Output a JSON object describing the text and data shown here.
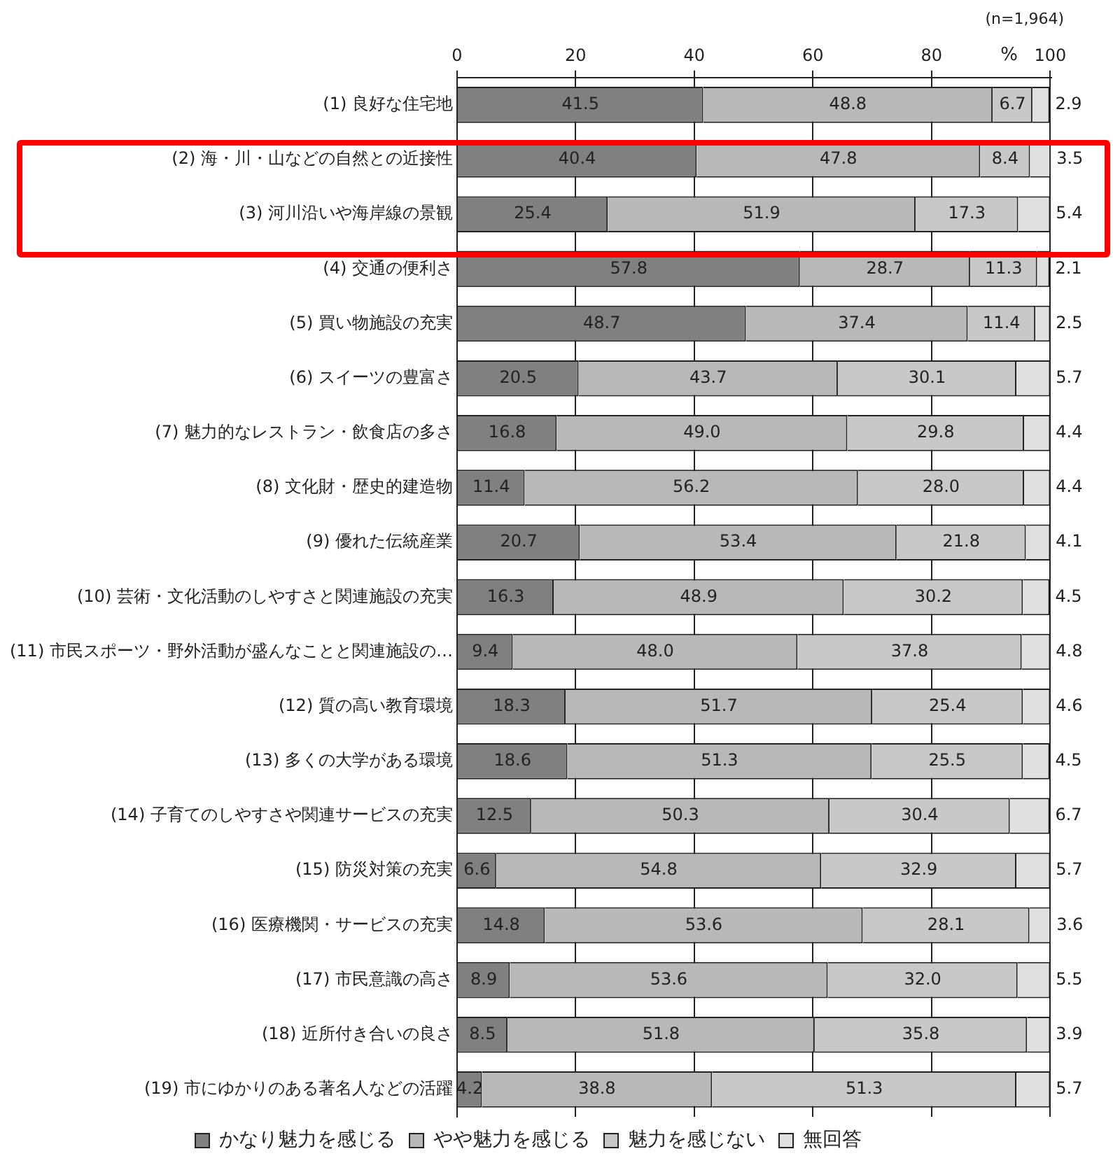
{
  "chart_data": {
    "type": "bar",
    "orientation": "horizontal",
    "stacked": true,
    "grid": "x",
    "legend": "bottom",
    "xlabel": "%",
    "annotations": [
      "(n=1,964)"
    ],
    "xlim": [
      0,
      100.2
    ],
    "xticks": [
      0,
      20,
      40,
      60,
      80,
      100
    ],
    "categories": [
      "(1) 良好な住宅地",
      "(2) 海・川・山などの自然との近接性",
      "(3) 河川沿いや海岸線の景観",
      "(4) 交通の便利さ",
      "(5) 買い物施設の充実",
      "(6) スイーツの豊富さ",
      "(7) 魅力的なレストラン・飲食店の多さ",
      "(8) 文化財・歴史的建造物",
      "(9) 優れた伝統産業",
      "(10) 芸術・文化活動のしやすさと関連施設の充実",
      "(11) 市民スポーツ・野外活動が盛んなことと関連施設の…",
      "(12) 質の高い教育環境",
      "(13) 多くの大学がある環境",
      "(14) 子育てのしやすさや関連サービスの充実",
      "(15) 防災対策の充実",
      "(16) 医療機関・サービスの充実",
      "(17) 市民意識の高さ",
      "(18) 近所付き合いの良さ",
      "(19) 市にゆかりのある著名人などの活躍"
    ],
    "series": [
      {
        "name": "かなり魅力を感じる",
        "color": "#808080",
        "values": [
          41.5,
          40.4,
          25.4,
          57.8,
          48.7,
          20.5,
          16.8,
          11.4,
          20.7,
          16.3,
          9.4,
          18.3,
          18.6,
          12.5,
          6.6,
          14.8,
          8.9,
          8.5,
          4.2
        ],
        "value_labels": [
          "41.5",
          "40.4",
          "25.4",
          "57.8",
          "48.7",
          "20.5",
          "16.8",
          "11.4",
          "20.7",
          "16.3",
          "9.4",
          "18.3",
          "18.6",
          "12.5",
          "6.6",
          "14.8",
          "8.9",
          "8.5",
          "4.2"
        ]
      },
      {
        "name": "やや魅力を感じる",
        "color": "#b8b8b8",
        "values": [
          48.8,
          47.8,
          51.9,
          28.7,
          37.4,
          43.7,
          49.0,
          56.2,
          53.4,
          48.9,
          48.0,
          51.7,
          51.3,
          50.3,
          54.8,
          53.6,
          53.6,
          51.8,
          38.8
        ],
        "value_labels": [
          "48.8",
          "47.8",
          "51.9",
          "28.7",
          "37.4",
          "43.7",
          "49.0",
          "56.2",
          "53.4",
          "48.9",
          "48.0",
          "51.7",
          "51.3",
          "50.3",
          "54.8",
          "53.6",
          "53.6",
          "51.8",
          "38.8"
        ]
      },
      {
        "name": "魅力を感じない",
        "color": "#c8c8c8",
        "values": [
          6.7,
          8.4,
          17.3,
          11.3,
          11.4,
          30.1,
          29.8,
          28.0,
          21.8,
          30.2,
          37.8,
          25.4,
          25.5,
          30.4,
          32.9,
          28.1,
          32.0,
          35.8,
          51.3
        ],
        "value_labels": [
          "6.7",
          "8.4",
          "17.3",
          "11.3",
          "11.4",
          "30.1",
          "29.8",
          "28.0",
          "21.8",
          "30.2",
          "37.8",
          "25.4",
          "25.5",
          "30.4",
          "32.9",
          "28.1",
          "32.0",
          "35.8",
          "51.3"
        ]
      },
      {
        "name": "無回答",
        "color": "#e0e0e0",
        "values": [
          2.9,
          3.5,
          5.4,
          2.1,
          2.5,
          5.7,
          4.4,
          4.4,
          4.1,
          4.5,
          4.8,
          4.6,
          4.5,
          6.7,
          5.7,
          3.6,
          5.5,
          3.9,
          5.7
        ],
        "value_labels": [
          "2.9",
          "3.5",
          "5.4",
          "2.1",
          "2.5",
          "5.7",
          "4.4",
          "4.4",
          "4.1",
          "4.5",
          "4.8",
          "4.6",
          "4.5",
          "6.7",
          "5.7",
          "3.6",
          "5.5",
          "3.9",
          "5.7"
        ]
      }
    ]
  }
}
